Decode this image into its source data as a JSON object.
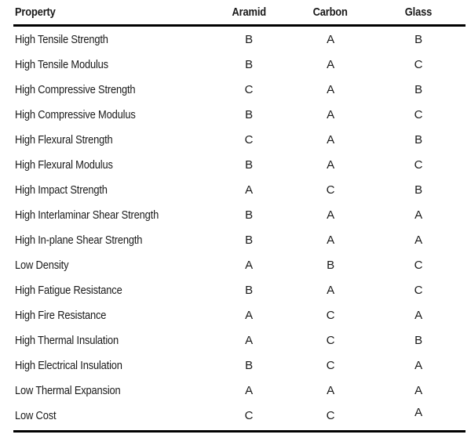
{
  "colors": {
    "text": "#1a1a1a",
    "rule": "#000000",
    "background": "#ffffff"
  },
  "table": {
    "columns": [
      "Property",
      "Aramid",
      "Carbon",
      "Glass"
    ],
    "rows": [
      {
        "property": "High Tensile Strength",
        "aramid": "B",
        "carbon": "A",
        "glass": "B"
      },
      {
        "property": "High Tensile Modulus",
        "aramid": "B",
        "carbon": "A",
        "glass": "C"
      },
      {
        "property": "High Compressive Strength",
        "aramid": "C",
        "carbon": "A",
        "glass": "B"
      },
      {
        "property": "High Compressive Modulus",
        "aramid": "B",
        "carbon": "A",
        "glass": "C"
      },
      {
        "property": "High Flexural Strength",
        "aramid": "C",
        "carbon": "A",
        "glass": "B"
      },
      {
        "property": "High Flexural Modulus",
        "aramid": "B",
        "carbon": "A",
        "glass": "C"
      },
      {
        "property": "High Impact Strength",
        "aramid": "A",
        "carbon": "C",
        "glass": "B"
      },
      {
        "property": "High Interlaminar Shear Strength",
        "aramid": "B",
        "carbon": "A",
        "glass": "A"
      },
      {
        "property": "High In-plane Shear Strength",
        "aramid": "B",
        "carbon": "A",
        "glass": "A"
      },
      {
        "property": "Low Density",
        "aramid": "A",
        "carbon": "B",
        "glass": "C"
      },
      {
        "property": "High Fatigue Resistance",
        "aramid": "B",
        "carbon": "A",
        "glass": "C"
      },
      {
        "property": "High Fire Resistance",
        "aramid": "A",
        "carbon": "C",
        "glass": "A"
      },
      {
        "property": "High Thermal Insulation",
        "aramid": "A",
        "carbon": "C",
        "glass": "B"
      },
      {
        "property": "High Electrical Insulation",
        "aramid": "B",
        "carbon": "C",
        "glass": "A"
      },
      {
        "property": "Low Thermal Expansion",
        "aramid": "A",
        "carbon": "A",
        "glass": "A"
      },
      {
        "property": "Low Cost",
        "aramid": "C",
        "carbon": "C",
        "glass": "A"
      }
    ]
  }
}
